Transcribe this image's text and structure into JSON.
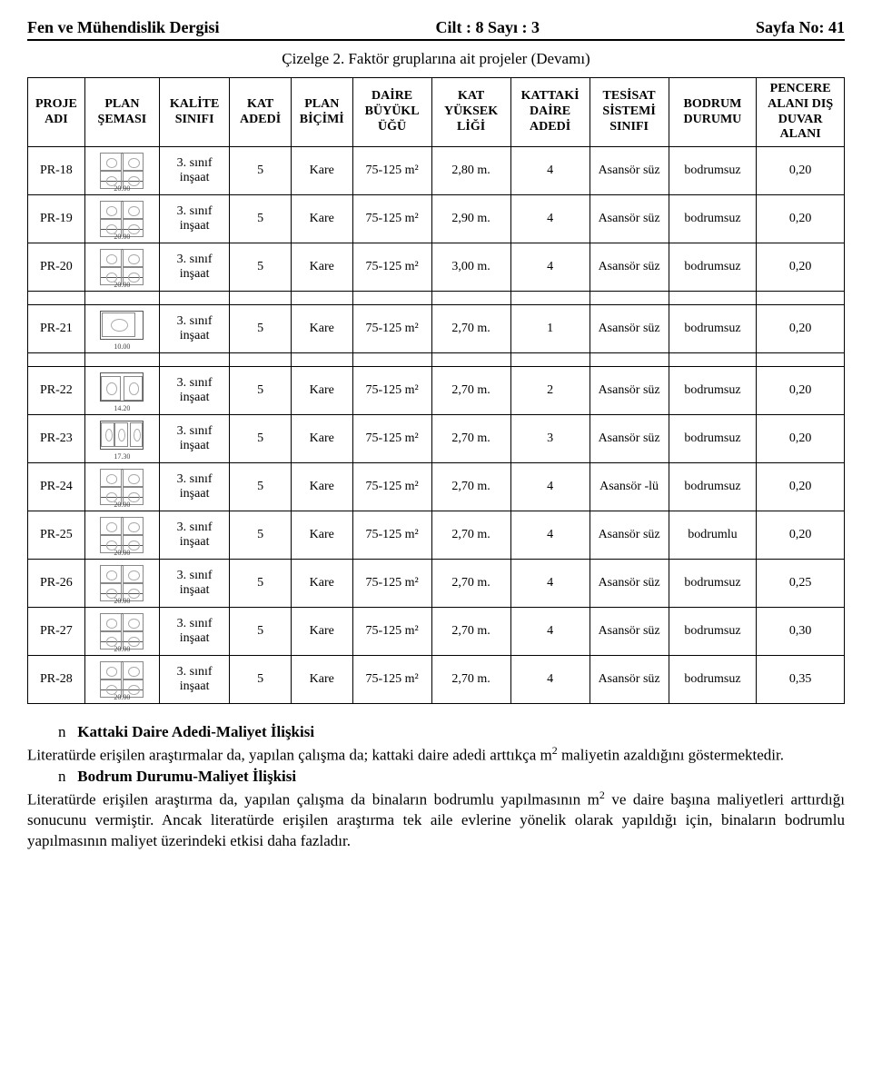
{
  "header": {
    "left": "Fen ve Mühendislik Dergisi",
    "center": "Cilt : 8 Sayı : 3",
    "right": "Sayfa No: 41"
  },
  "caption": "Çizelge 2. Faktör gruplarına ait projeler (Devamı)",
  "columns": [
    "PROJE ADI",
    "PLAN ŞEMASI",
    "KALİTE SINIFI",
    "KAT ADEDİ",
    "PLAN BİÇİMİ",
    "DAİRE BÜYÜKL ÜĞÜ",
    "KAT YÜKSEK LİĞİ",
    "KATTAKİ DAİRE ADEDİ",
    "TESİSAT SİSTEMİ SINIFI",
    "BODRUM DURUMU",
    "PENCERE ALANI DIŞ DUVAR ALANI"
  ],
  "rows": [
    {
      "id": "PR-18",
      "dim": "20.00",
      "kalite": "3. sınıf inşaat",
      "kat": "5",
      "bicim": "Kare",
      "buyuk": "75-125 m²",
      "yuksek": "2,80 m.",
      "daire": "4",
      "tesisat": "Asansör süz",
      "bodrum": "bodrumsuz",
      "pencere": "0,20",
      "icon": "quad",
      "gapAfter": false
    },
    {
      "id": "PR-19",
      "dim": "20.00",
      "kalite": "3. sınıf inşaat",
      "kat": "5",
      "bicim": "Kare",
      "buyuk": "75-125 m²",
      "yuksek": "2,90 m.",
      "daire": "4",
      "tesisat": "Asansör süz",
      "bodrum": "bodrumsuz",
      "pencere": "0,20",
      "icon": "quad",
      "gapAfter": false
    },
    {
      "id": "PR-20",
      "dim": "20.00",
      "kalite": "3. sınıf inşaat",
      "kat": "5",
      "bicim": "Kare",
      "buyuk": "75-125 m²",
      "yuksek": "3,00 m.",
      "daire": "4",
      "tesisat": "Asansör süz",
      "bodrum": "bodrumsuz",
      "pencere": "0,20",
      "icon": "quad",
      "gapAfter": true
    },
    {
      "id": "PR-21",
      "dim": "10.00",
      "kalite": "3. sınıf inşaat",
      "kat": "5",
      "bicim": "Kare",
      "buyuk": "75-125 m²",
      "yuksek": "2,70 m.",
      "daire": "1",
      "tesisat": "Asansör süz",
      "bodrum": "bodrumsuz",
      "pencere": "0,20",
      "icon": "single",
      "gapAfter": true
    },
    {
      "id": "PR-22",
      "dim": "14.20",
      "kalite": "3. sınıf inşaat",
      "kat": "5",
      "bicim": "Kare",
      "buyuk": "75-125 m²",
      "yuksek": "2,70 m.",
      "daire": "2",
      "tesisat": "Asansör süz",
      "bodrum": "bodrumsuz",
      "pencere": "0,20",
      "icon": "dual",
      "gapAfter": false
    },
    {
      "id": "PR-23",
      "dim": "17.30",
      "kalite": "3. sınıf inşaat",
      "kat": "5",
      "bicim": "Kare",
      "buyuk": "75-125 m²",
      "yuksek": "2,70 m.",
      "daire": "3",
      "tesisat": "Asansör süz",
      "bodrum": "bodrumsuz",
      "pencere": "0,20",
      "icon": "tri",
      "gapAfter": false
    },
    {
      "id": "PR-24",
      "dim": "20.00",
      "kalite": "3. sınıf inşaat",
      "kat": "5",
      "bicim": "Kare",
      "buyuk": "75-125 m²",
      "yuksek": "2,70 m.",
      "daire": "4",
      "tesisat": "Asansör -lü",
      "bodrum": "bodrumsuz",
      "pencere": "0,20",
      "icon": "quad",
      "gapAfter": false
    },
    {
      "id": "PR-25",
      "dim": "20.00",
      "kalite": "3. sınıf inşaat",
      "kat": "5",
      "bicim": "Kare",
      "buyuk": "75-125 m²",
      "yuksek": "2,70 m.",
      "daire": "4",
      "tesisat": "Asansör süz",
      "bodrum": "bodrumlu",
      "pencere": "0,20",
      "icon": "quad",
      "gapAfter": false
    },
    {
      "id": "PR-26",
      "dim": "20.00",
      "kalite": "3. sınıf inşaat",
      "kat": "5",
      "bicim": "Kare",
      "buyuk": "75-125 m²",
      "yuksek": "2,70 m.",
      "daire": "4",
      "tesisat": "Asansör süz",
      "bodrum": "bodrumsuz",
      "pencere": "0,25",
      "icon": "quad",
      "gapAfter": false
    },
    {
      "id": "PR-27",
      "dim": "20.00",
      "kalite": "3. sınıf inşaat",
      "kat": "5",
      "bicim": "Kare",
      "buyuk": "75-125 m²",
      "yuksek": "2,70 m.",
      "daire": "4",
      "tesisat": "Asansör süz",
      "bodrum": "bodrumsuz",
      "pencere": "0,30",
      "icon": "quad",
      "gapAfter": false
    },
    {
      "id": "PR-28",
      "dim": "20.00",
      "kalite": "3. sınıf inşaat",
      "kat": "5",
      "bicim": "Kare",
      "buyuk": "75-125 m²",
      "yuksek": "2,70 m.",
      "daire": "4",
      "tesisat": "Asansör süz",
      "bodrum": "bodrumsuz",
      "pencere": "0,35",
      "icon": "quad",
      "gapAfter": false
    }
  ],
  "body": {
    "h1": "Kattaki Daire Adedi-Maliyet İlişkisi",
    "p1a": "Literatürde erişilen araştırmalar da, yapılan çalışma da; kattaki daire adedi arttıkça m",
    "p1b": " maliyetin azaldığını göstermektedir.",
    "h2": "Bodrum Durumu-Maliyet İlişkisi",
    "p2a": "Literatürde erişilen araştırma da, yapılan çalışma da binaların bodrumlu yapılmasının m",
    "p2b": " ve daire başına maliyetleri arttırdığı sonucunu vermiştir. Ancak literatürde erişilen araştırma tek aile evlerine yönelik olarak yapıldığı için, binaların bodrumlu yapılmasının maliyet üzerindeki etkisi daha fazladır."
  }
}
